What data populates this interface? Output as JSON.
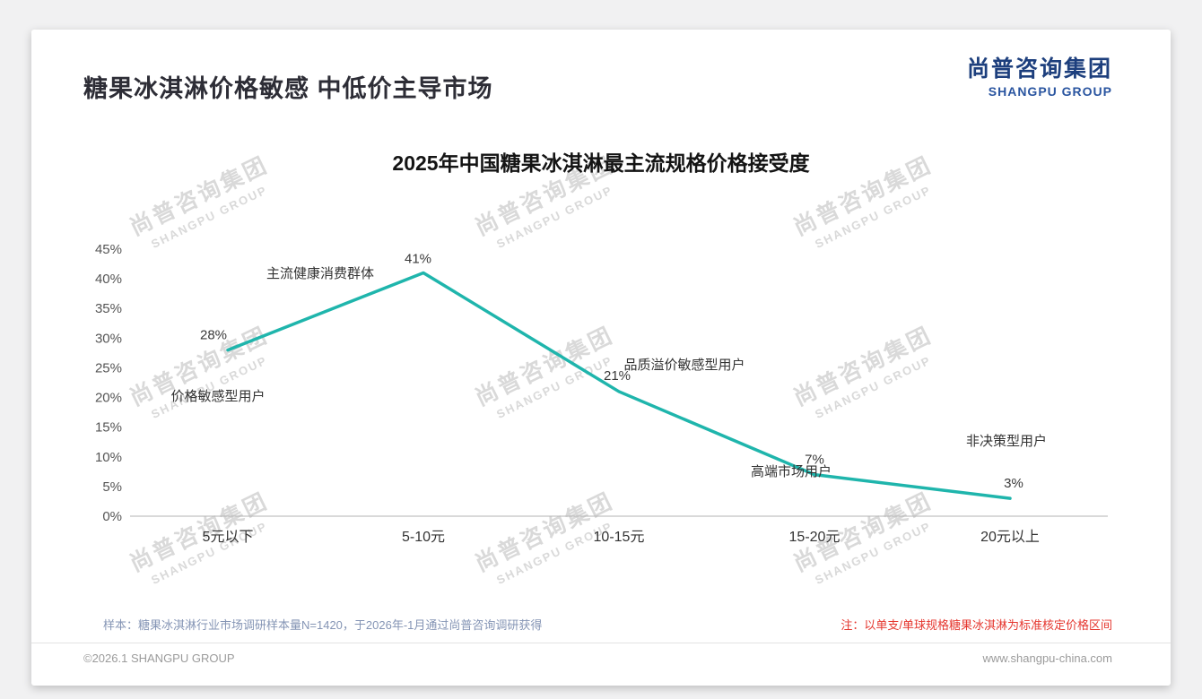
{
  "page": {
    "title": "糖果冰淇淋价格敏感 中低价主导市场",
    "logo": {
      "cn": "尚普咨询集团",
      "en": "SHANGPU GROUP"
    },
    "watermark": {
      "cn": "尚普咨询集团",
      "en": "SHANGPU GROUP"
    },
    "footnote_left": "样本：糖果冰淇淋行业市场调研样本量N=1420，于2026年-1月通过尚普咨询调研获得",
    "footnote_right": "注：以单支/单球规格糖果冰淇淋为标准核定价格区间",
    "footer_left": "©2026.1 SHANGPU GROUP",
    "footer_right": "www.shangpu-china.com"
  },
  "chart_data": {
    "type": "line",
    "title": "2025年中国糖果冰淇淋最主流规格价格接受度",
    "categories": [
      "5元以下",
      "5-10元",
      "10-15元",
      "15-20元",
      "20元以上"
    ],
    "values": [
      28,
      41,
      21,
      7,
      3
    ],
    "value_labels": [
      "28%",
      "41%",
      "21%",
      "7%",
      "3%"
    ],
    "annotations": [
      "价格敏感型用户",
      "主流健康消费群体",
      "品质溢价敏感型用户",
      "高端市场用户",
      "非决策型用户"
    ],
    "xlabel": "",
    "ylabel": "",
    "ylim": [
      0,
      45
    ],
    "ytick_step": 5,
    "ytick_suffix": "%",
    "line_color": "#1fb5ac",
    "grid": false,
    "legend": null
  }
}
